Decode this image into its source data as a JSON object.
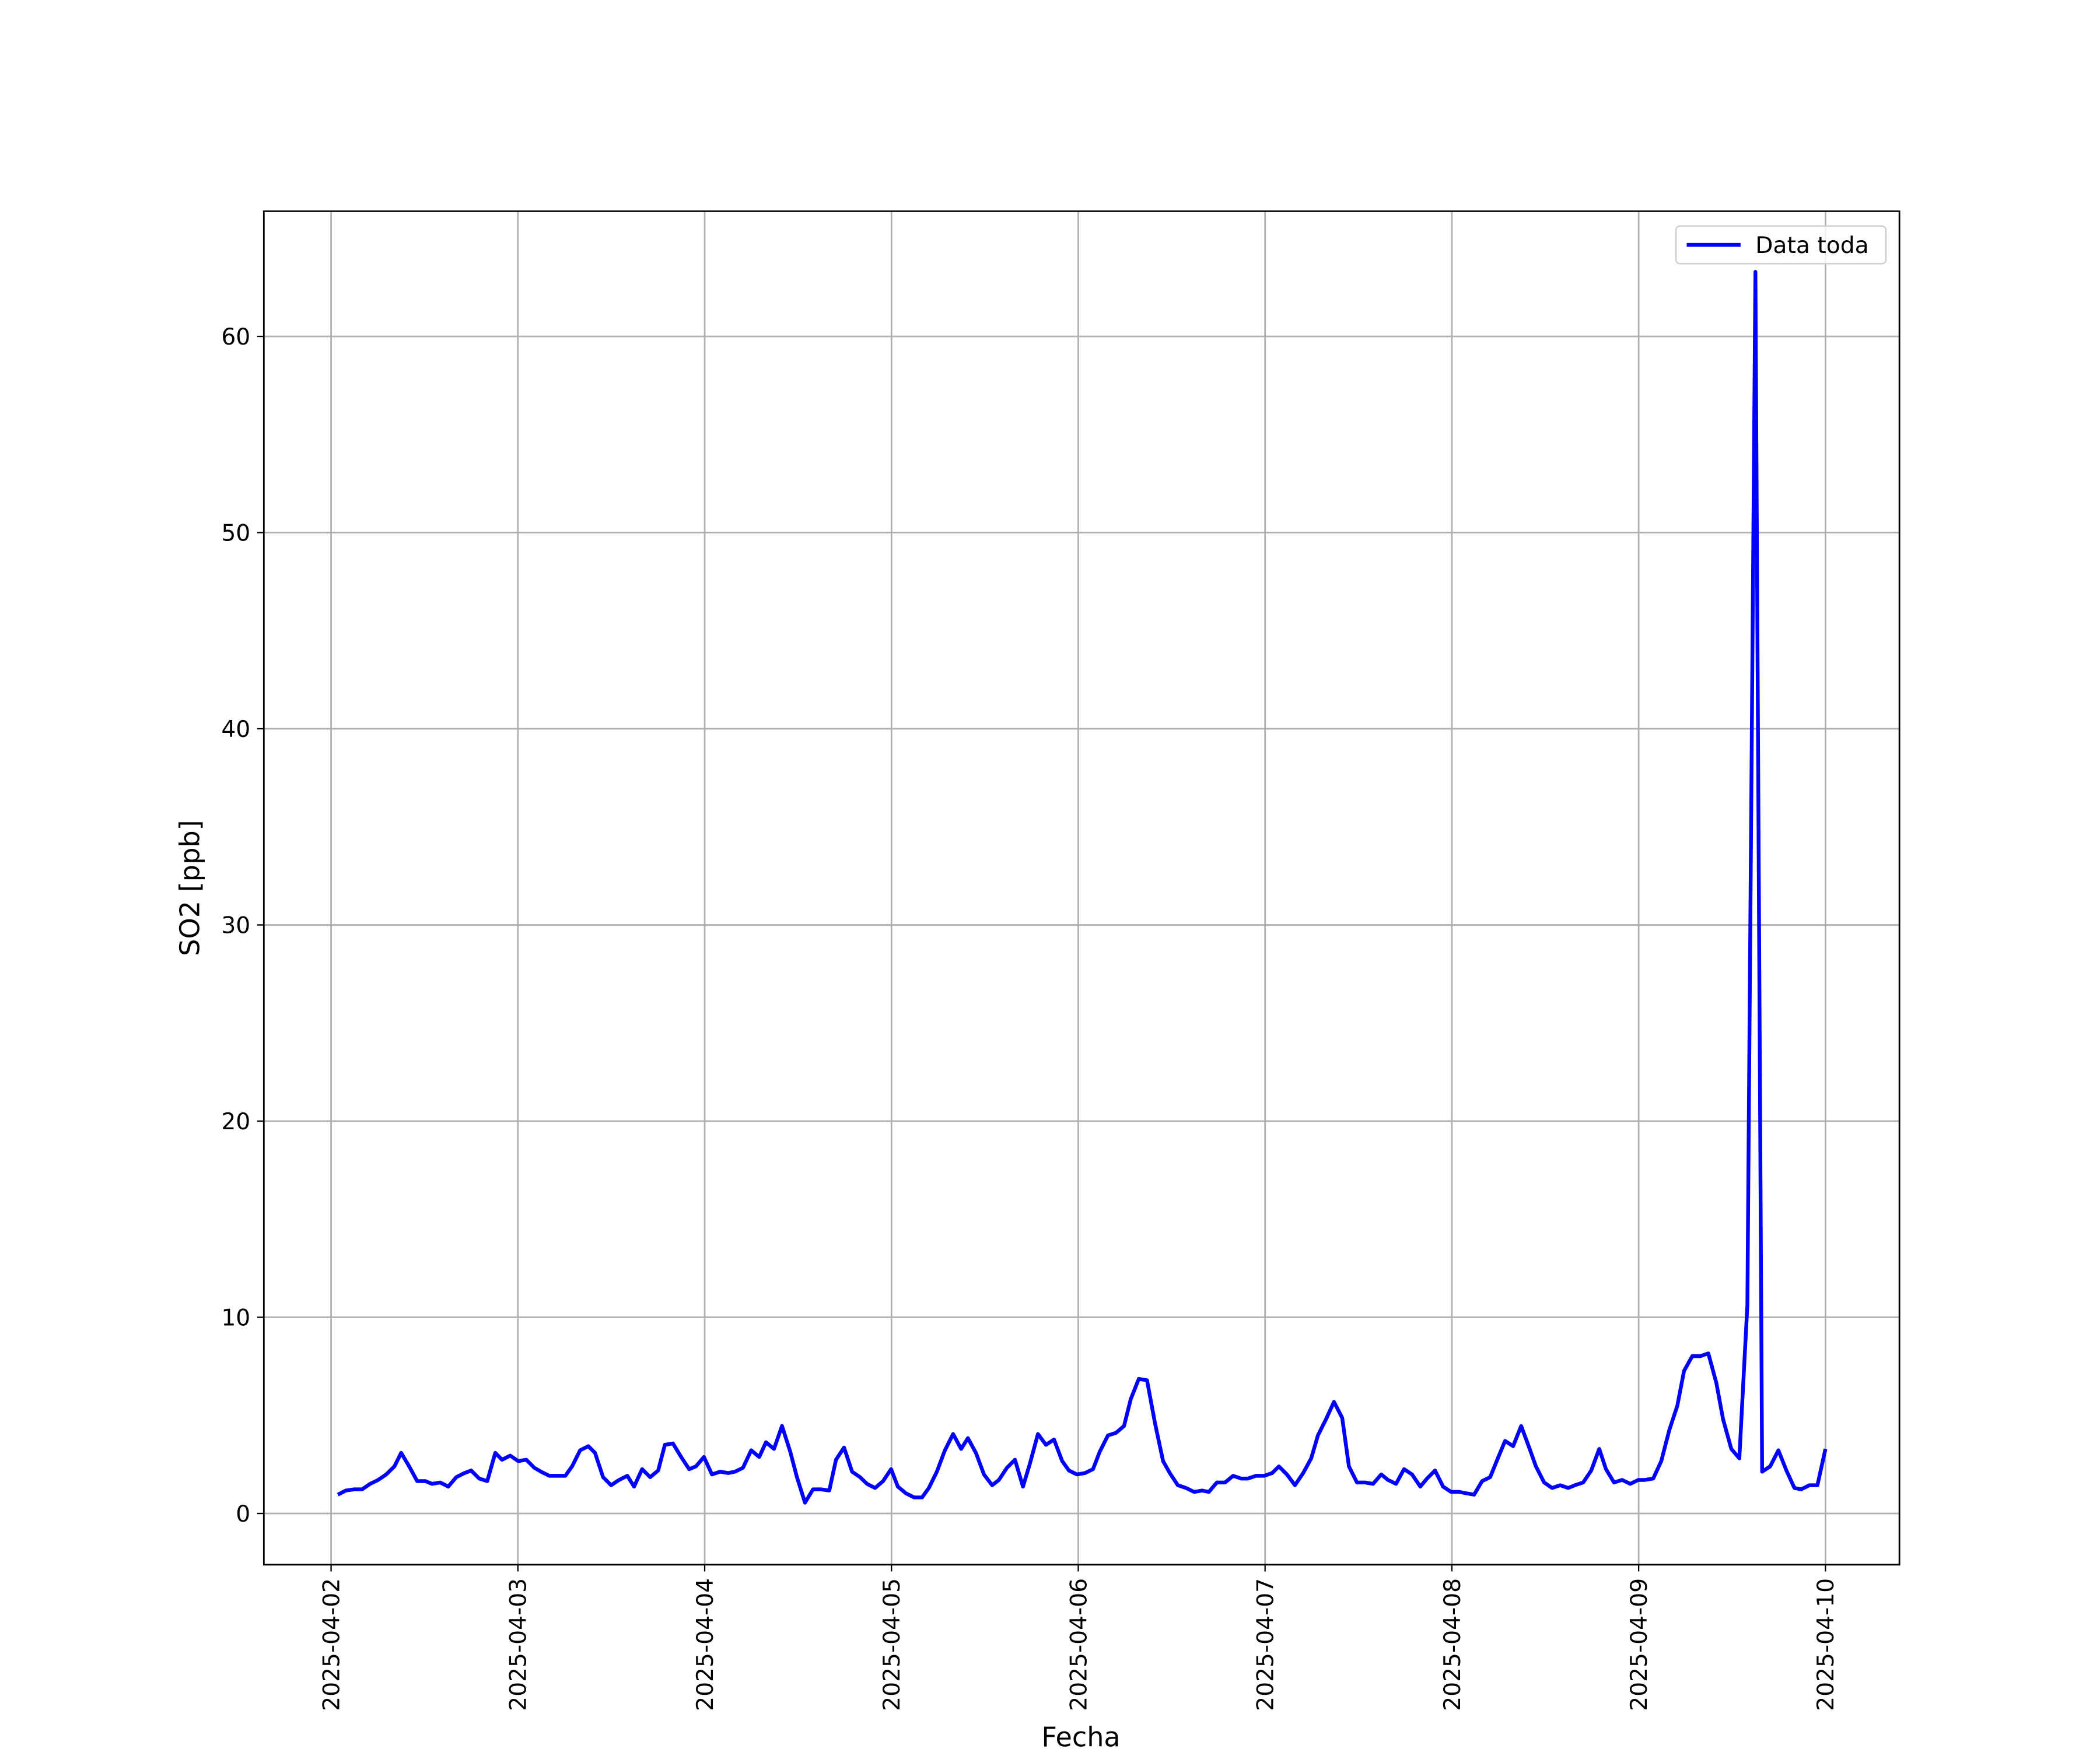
{
  "chart_data": {
    "type": "line",
    "x_label": "Fecha",
    "y_label": "SO2 [ppb]",
    "x": [
      0.036,
      0.079,
      0.123,
      0.166,
      0.209,
      0.252,
      0.295,
      0.339,
      0.375,
      0.418,
      0.461,
      0.505,
      0.541,
      0.584,
      0.627,
      0.67,
      0.714,
      0.75,
      0.793,
      0.836,
      0.879,
      0.915,
      0.959,
      1.002,
      1.045,
      1.088,
      1.124,
      1.168,
      1.211,
      1.254,
      1.29,
      1.333,
      1.377,
      1.413,
      1.456,
      1.499,
      1.542,
      1.586,
      1.622,
      1.665,
      1.708,
      1.751,
      1.787,
      1.83,
      1.874,
      1.917,
      1.953,
      1.996,
      2.039,
      2.083,
      2.126,
      2.162,
      2.205,
      2.249,
      2.292,
      2.328,
      2.371,
      2.414,
      2.458,
      2.494,
      2.537,
      2.58,
      2.623,
      2.667,
      2.703,
      2.746,
      2.789,
      2.832,
      2.869,
      2.912,
      2.955,
      2.998,
      3.034,
      3.077,
      3.121,
      3.164,
      3.2,
      3.243,
      3.286,
      3.33,
      3.373,
      3.409,
      3.452,
      3.495,
      3.539,
      3.575,
      3.618,
      3.661,
      3.704,
      3.741,
      3.784,
      3.827,
      3.87,
      3.914,
      3.95,
      3.993,
      4.036,
      4.079,
      4.115,
      4.159,
      4.202,
      4.245,
      4.281,
      4.324,
      4.368,
      4.411,
      4.454,
      4.49,
      4.533,
      4.577,
      4.62,
      4.663,
      4.699,
      4.742,
      4.786,
      4.829,
      4.872,
      4.908,
      4.951,
      4.995,
      5.038,
      5.074,
      5.117,
      5.16,
      5.204,
      5.247,
      5.283,
      5.326,
      5.369,
      5.413,
      5.449,
      5.492,
      5.535,
      5.578,
      5.622,
      5.658,
      5.701,
      5.744,
      5.787,
      5.831,
      5.867,
      5.91,
      5.953,
      5.996,
      6.04,
      6.076,
      6.119,
      6.162,
      6.205,
      6.249,
      6.285,
      6.328,
      6.371,
      6.414,
      6.45,
      6.494,
      6.537,
      6.58,
      6.623,
      6.659,
      6.703,
      6.746,
      6.789,
      6.825,
      6.868,
      6.912,
      6.955,
      6.998,
      7.034,
      7.078,
      7.121,
      7.164,
      7.207,
      7.243,
      7.287,
      7.33,
      7.373,
      7.416,
      7.452,
      7.496,
      7.539,
      7.582,
      7.625,
      7.661,
      7.704,
      7.748,
      7.791,
      7.834,
      7.87,
      7.914,
      7.957,
      8.0
    ],
    "series": [
      {
        "name": "Data toda",
        "color": "#0000ff",
        "values": [
          0.96,
          1.17,
          1.23,
          1.23,
          1.51,
          1.71,
          1.99,
          2.4,
          3.09,
          2.4,
          1.65,
          1.65,
          1.51,
          1.58,
          1.37,
          1.85,
          2.06,
          2.19,
          1.78,
          1.65,
          3.09,
          2.74,
          2.95,
          2.67,
          2.74,
          2.33,
          2.13,
          1.92,
          1.92,
          1.92,
          2.4,
          3.22,
          3.43,
          3.09,
          1.85,
          1.44,
          1.71,
          1.92,
          1.37,
          2.26,
          1.85,
          2.19,
          3.5,
          3.57,
          2.88,
          2.26,
          2.4,
          2.88,
          1.99,
          2.13,
          2.06,
          2.13,
          2.33,
          3.22,
          2.88,
          3.63,
          3.29,
          4.46,
          3.15,
          1.85,
          0.55,
          1.23,
          1.23,
          1.17,
          2.74,
          3.36,
          2.13,
          1.85,
          1.51,
          1.3,
          1.65,
          2.26,
          1.37,
          1.03,
          0.82,
          0.82,
          1.3,
          2.13,
          3.22,
          4.05,
          3.29,
          3.84,
          3.09,
          1.99,
          1.44,
          1.71,
          2.33,
          2.74,
          1.37,
          2.54,
          4.05,
          3.5,
          3.77,
          2.67,
          2.19,
          1.99,
          2.06,
          2.26,
          3.15,
          3.98,
          4.11,
          4.46,
          5.83,
          6.86,
          6.79,
          4.59,
          2.67,
          2.06,
          1.44,
          1.3,
          1.1,
          1.17,
          1.1,
          1.58,
          1.58,
          1.92,
          1.78,
          1.78,
          1.92,
          1.92,
          2.06,
          2.4,
          1.99,
          1.44,
          2.06,
          2.81,
          3.98,
          4.8,
          5.69,
          4.87,
          2.4,
          1.58,
          1.58,
          1.51,
          1.99,
          1.71,
          1.51,
          2.26,
          1.99,
          1.37,
          1.78,
          2.19,
          1.37,
          1.1,
          1.1,
          1.03,
          0.96,
          1.65,
          1.85,
          2.88,
          3.7,
          3.43,
          4.46,
          3.36,
          2.4,
          1.58,
          1.3,
          1.44,
          1.3,
          1.44,
          1.58,
          2.19,
          3.29,
          2.26,
          1.58,
          1.71,
          1.51,
          1.71,
          1.71,
          1.78,
          2.67,
          4.25,
          5.49,
          7.27,
          8.02,
          8.02,
          8.16,
          6.65,
          4.8,
          3.29,
          2.81,
          10.63,
          63.29,
          2.13,
          2.4,
          3.22,
          2.19,
          1.3,
          1.23,
          1.44,
          1.44,
          3.29
        ]
      }
    ],
    "xlim": [
      -0.36,
      8.396
    ],
    "xticks": [
      {
        "value": 0,
        "label": "2025-04-02"
      },
      {
        "value": 1,
        "label": "2025-04-03"
      },
      {
        "value": 2,
        "label": "2025-04-04"
      },
      {
        "value": 3,
        "label": "2025-04-05"
      },
      {
        "value": 4,
        "label": "2025-04-06"
      },
      {
        "value": 5,
        "label": "2025-04-07"
      },
      {
        "value": 6,
        "label": "2025-04-08"
      },
      {
        "value": 7,
        "label": "2025-04-09"
      },
      {
        "value": 8,
        "label": "2025-04-10"
      }
    ],
    "ylim": [
      -2.61,
      66.38
    ],
    "yticks": [
      0,
      10,
      20,
      30,
      40,
      50,
      60
    ],
    "grid": true,
    "legend": "upper-right"
  }
}
